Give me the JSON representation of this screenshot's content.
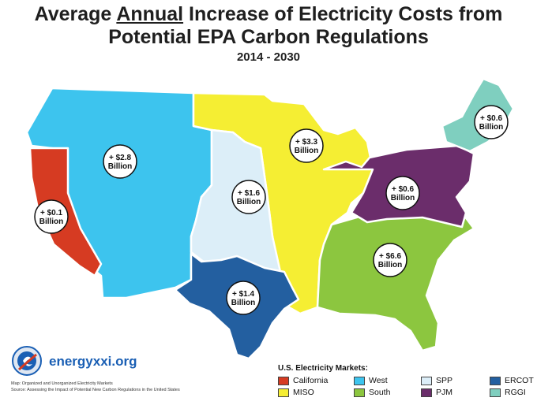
{
  "title": {
    "prefix": "Average ",
    "emphasis": "Annual",
    "line1_rest": " Increase of Electricity Costs from",
    "line2": "Potential EPA Carbon Regulations"
  },
  "subtitle": "2014 - 2030",
  "regions": [
    {
      "id": "california",
      "name": "California",
      "color": "#d63b22",
      "cost": [
        "+ $0.1",
        "Billion"
      ]
    },
    {
      "id": "west",
      "name": "West",
      "color": "#3dc4ee",
      "cost": [
        "+ $2.8",
        "Billion"
      ]
    },
    {
      "id": "spp",
      "name": "SPP",
      "color": "#dceef8",
      "cost": [
        "+ $1.6",
        "Billion"
      ]
    },
    {
      "id": "miso",
      "name": "MISO",
      "color": "#f5ee33",
      "cost": [
        "+ $3.3",
        "Billion"
      ]
    },
    {
      "id": "ercot",
      "name": "ERCOT",
      "color": "#235fa0",
      "cost": [
        "+ $1.4",
        "Billion"
      ]
    },
    {
      "id": "south",
      "name": "South",
      "color": "#8cc63f",
      "cost": [
        "+ $6.6",
        "Billion"
      ]
    },
    {
      "id": "pjm",
      "name": "PJM",
      "color": "#6b2d6b",
      "cost": [
        "+ $0.6",
        "Billion"
      ]
    },
    {
      "id": "rggi",
      "name": "RGGI",
      "color": "#7fcfbf",
      "cost": [
        "+ $0.6",
        "Billion"
      ]
    }
  ],
  "legend": {
    "title": "U.S. Electricity Markets:"
  },
  "branding": {
    "site": "energyxxi.org"
  },
  "footnotes": {
    "line1": "Map: Organized and Unorganized Electricity Markets",
    "line2": "Source: Assessing the Impact of Potential New Carbon Regulations in the United States"
  }
}
